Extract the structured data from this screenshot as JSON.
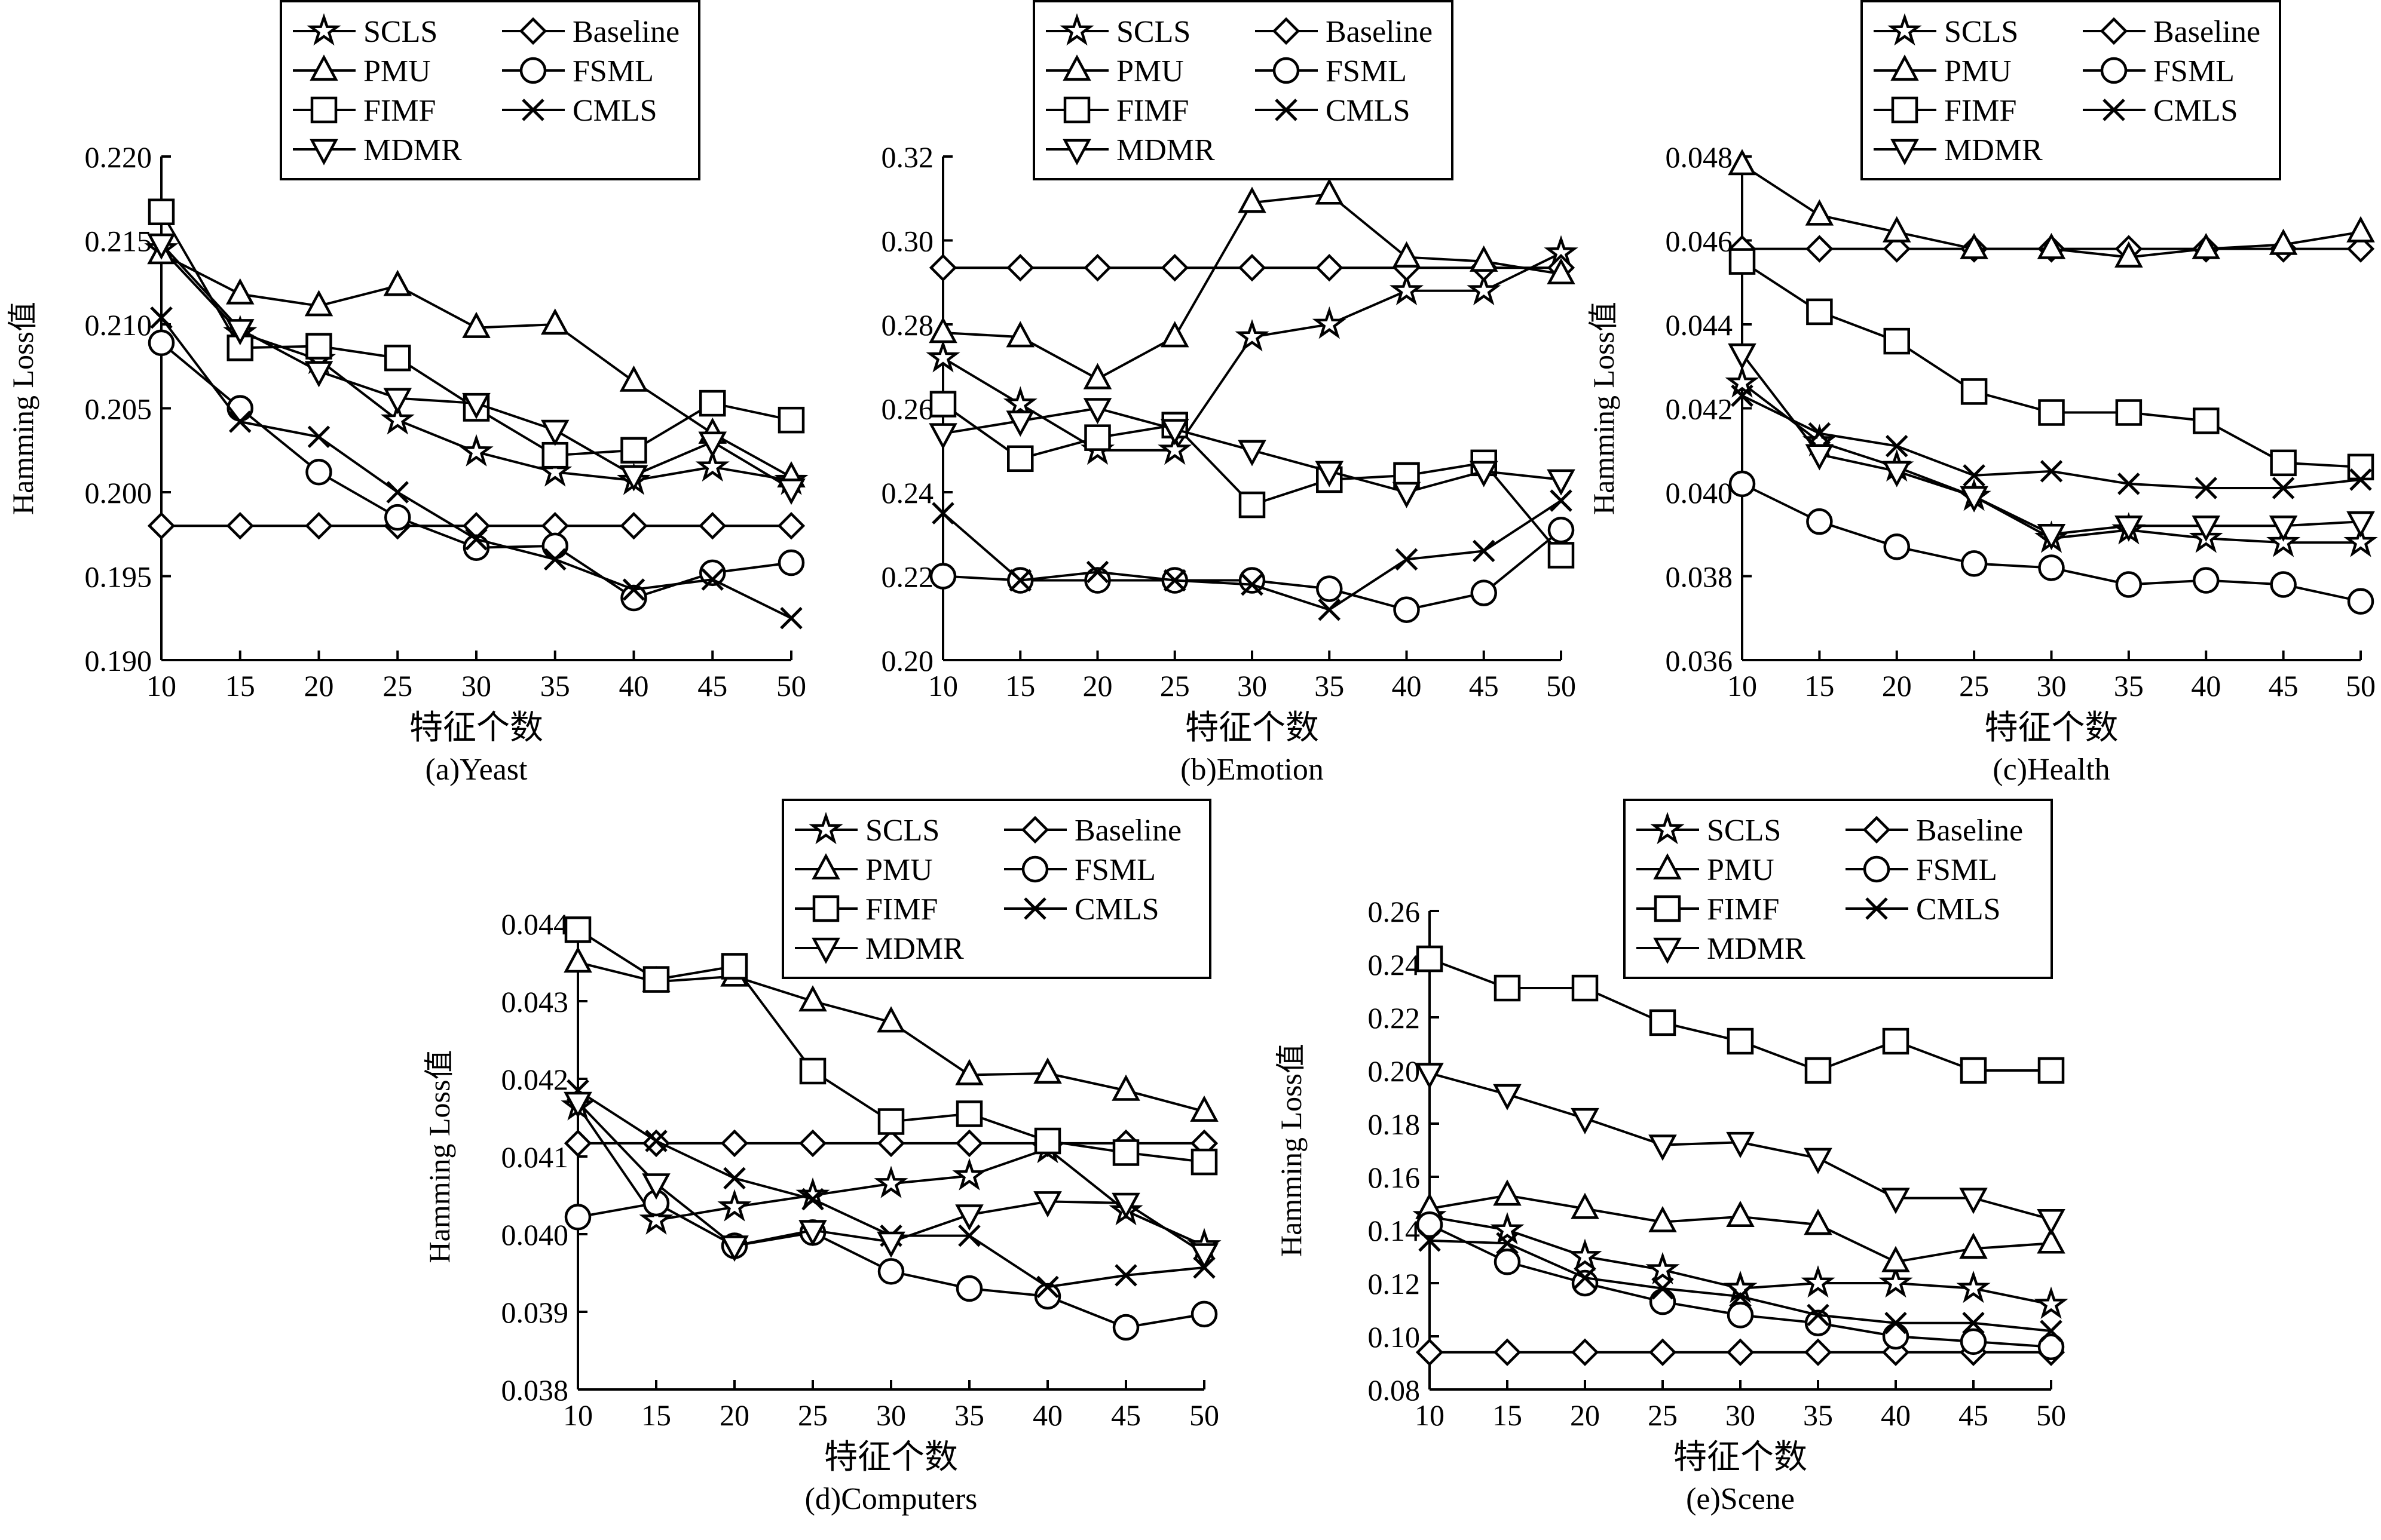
{
  "chart_data": [
    {
      "type": "line",
      "caption": "(a)Yeast",
      "xlabel": "特征个数",
      "ylabel": "Hamming Loss值",
      "x": [
        10,
        15,
        20,
        25,
        30,
        35,
        40,
        45,
        50
      ],
      "xlim": [
        10,
        50
      ],
      "ylim": [
        0.19,
        0.22
      ],
      "yticks": [
        "0.190",
        "0.195",
        "0.200",
        "0.205",
        "0.210",
        "0.215",
        "0.220"
      ],
      "legend_position": "top",
      "grid": false,
      "series": [
        {
          "name": "SCLS",
          "marker": "star",
          "values": [
            0.2145,
            0.2095,
            0.2079,
            0.2043,
            0.2024,
            0.2012,
            0.2007,
            0.2015,
            0.2007
          ]
        },
        {
          "name": "Baseline",
          "marker": "diamond",
          "values": [
            0.198,
            0.198,
            0.198,
            0.198,
            0.198,
            0.198,
            0.198,
            0.198,
            0.198
          ]
        },
        {
          "name": "PMU",
          "marker": "triangle-up",
          "values": [
            0.2142,
            0.2118,
            0.2111,
            0.2123,
            0.2098,
            0.21,
            0.2066,
            0.2035,
            0.2009
          ]
        },
        {
          "name": "FSML",
          "marker": "circle",
          "values": [
            0.2089,
            0.205,
            0.2012,
            0.1985,
            0.1967,
            0.1968,
            0.1937,
            0.1952,
            0.1958
          ]
        },
        {
          "name": "FIMF",
          "marker": "square",
          "values": [
            0.2167,
            0.2086,
            0.2087,
            0.208,
            0.205,
            0.2022,
            0.2025,
            0.2053,
            0.2043
          ]
        },
        {
          "name": "CMLS",
          "marker": "x",
          "values": [
            0.2104,
            0.2042,
            0.2033,
            0.2,
            0.1972,
            0.196,
            0.1942,
            0.1948,
            0.1925
          ]
        },
        {
          "name": "MDMR",
          "marker": "triangle-down",
          "values": [
            0.2148,
            0.2097,
            0.2072,
            0.2056,
            0.2053,
            0.2037,
            0.201,
            0.203,
            0.2002
          ]
        }
      ]
    },
    {
      "type": "line",
      "caption": "(b)Emotion",
      "xlabel": "特征个数",
      "ylabel": "",
      "x": [
        10,
        15,
        20,
        25,
        30,
        35,
        40,
        45,
        50
      ],
      "xlim": [
        10,
        50
      ],
      "ylim": [
        0.2,
        0.32
      ],
      "yticks": [
        "0.20",
        "0.22",
        "0.24",
        "0.26",
        "0.28",
        "0.30",
        "0.32"
      ],
      "legend_position": "top",
      "grid": false,
      "series": [
        {
          "name": "SCLS",
          "marker": "star",
          "values": [
            0.272,
            0.261,
            0.25,
            0.25,
            0.277,
            0.28,
            0.288,
            0.288,
            0.297
          ]
        },
        {
          "name": "Baseline",
          "marker": "diamond",
          "values": [
            0.2935,
            0.2935,
            0.2935,
            0.2935,
            0.2935,
            0.2935,
            0.2935,
            0.2935,
            0.2935
          ]
        },
        {
          "name": "PMU",
          "marker": "triangle-up",
          "values": [
            0.278,
            0.277,
            0.267,
            0.277,
            0.309,
            0.311,
            0.296,
            0.295,
            0.292
          ]
        },
        {
          "name": "FSML",
          "marker": "circle",
          "values": [
            0.22,
            0.219,
            0.219,
            0.219,
            0.219,
            0.217,
            0.212,
            0.216,
            0.231
          ]
        },
        {
          "name": "FIMF",
          "marker": "square",
          "values": [
            0.261,
            0.248,
            0.253,
            0.256,
            0.237,
            0.243,
            0.244,
            0.247,
            0.225
          ]
        },
        {
          "name": "CMLS",
          "marker": "x",
          "values": [
            0.235,
            0.219,
            0.221,
            0.219,
            0.218,
            0.212,
            0.224,
            0.226,
            0.238
          ]
        },
        {
          "name": "MDMR",
          "marker": "triangle-down",
          "values": [
            0.254,
            0.257,
            0.26,
            0.255,
            0.25,
            0.245,
            0.24,
            0.245,
            0.243
          ]
        }
      ]
    },
    {
      "type": "line",
      "caption": "(c)Health",
      "xlabel": "特征个数",
      "ylabel": "Hamming Loss值",
      "x": [
        10,
        15,
        20,
        25,
        30,
        35,
        40,
        45,
        50
      ],
      "xlim": [
        10,
        50
      ],
      "ylim": [
        0.036,
        0.048
      ],
      "yticks": [
        "0.036",
        "0.038",
        "0.040",
        "0.042",
        "0.044",
        "0.046",
        "0.048"
      ],
      "legend_position": "top",
      "grid": false,
      "series": [
        {
          "name": "SCLS",
          "marker": "star",
          "values": [
            0.0426,
            0.0412,
            0.0406,
            0.0399,
            0.0389,
            0.0391,
            0.0389,
            0.0388,
            0.0388
          ]
        },
        {
          "name": "Baseline",
          "marker": "diamond",
          "values": [
            0.0458,
            0.0458,
            0.0458,
            0.0458,
            0.0458,
            0.0458,
            0.0458,
            0.0458,
            0.0458
          ]
        },
        {
          "name": "PMU",
          "marker": "triangle-up",
          "values": [
            0.0478,
            0.0466,
            0.0462,
            0.0458,
            0.0458,
            0.0456,
            0.0458,
            0.0459,
            0.0462
          ]
        },
        {
          "name": "FSML",
          "marker": "circle",
          "values": [
            0.0402,
            0.0393,
            0.0387,
            0.0383,
            0.0382,
            0.0378,
            0.0379,
            0.0378,
            0.0374
          ]
        },
        {
          "name": "FIMF",
          "marker": "square",
          "values": [
            0.0455,
            0.0443,
            0.0436,
            0.0424,
            0.0419,
            0.0419,
            0.0417,
            0.0407,
            0.0406
          ]
        },
        {
          "name": "CMLS",
          "marker": "x",
          "values": [
            0.0423,
            0.0414,
            0.0411,
            0.0404,
            0.0405,
            0.0402,
            0.0401,
            0.0401,
            0.0403
          ]
        },
        {
          "name": "MDMR",
          "marker": "triangle-down",
          "values": [
            0.0433,
            0.0409,
            0.0405,
            0.0399,
            0.039,
            0.0392,
            0.0392,
            0.0392,
            0.0393
          ]
        }
      ]
    },
    {
      "type": "line",
      "caption": "(d)Computers",
      "xlabel": "特征个数",
      "ylabel": "Hamming Loss值",
      "x": [
        10,
        15,
        20,
        25,
        30,
        35,
        40,
        45,
        50
      ],
      "xlim": [
        10,
        50
      ],
      "ylim": [
        0.038,
        0.044
      ],
      "yticks": [
        "0.038",
        "0.039",
        "0.040",
        "0.041",
        "0.042",
        "0.043",
        "0.044"
      ],
      "legend_position": "top",
      "grid": false,
      "series": [
        {
          "name": "SCLS",
          "marker": "star",
          "values": [
            0.04165,
            0.04018,
            0.04035,
            0.0405,
            0.04065,
            0.04075,
            0.0411,
            0.0403,
            0.03985
          ]
        },
        {
          "name": "Baseline",
          "marker": "diamond",
          "values": [
            0.04117,
            0.04117,
            0.04117,
            0.04117,
            0.04117,
            0.04117,
            0.04117,
            0.04117,
            0.04117
          ]
        },
        {
          "name": "PMU",
          "marker": "triangle-up",
          "values": [
            0.0435,
            0.04325,
            0.04332,
            0.043,
            0.04273,
            0.04205,
            0.04207,
            0.04185,
            0.04158
          ]
        },
        {
          "name": "FSML",
          "marker": "circle",
          "values": [
            0.04022,
            0.0404,
            0.03985,
            0.04002,
            0.03952,
            0.0393,
            0.0392,
            0.0388,
            0.03897
          ]
        },
        {
          "name": "FIMF",
          "marker": "square",
          "values": [
            0.04392,
            0.04328,
            0.04345,
            0.0421,
            0.04145,
            0.04155,
            0.0412,
            0.04105,
            0.04093
          ]
        },
        {
          "name": "CMLS",
          "marker": "x",
          "values": [
            0.04185,
            0.0412,
            0.04072,
            0.04045,
            0.03998,
            0.03998,
            0.03932,
            0.03947,
            0.03957
          ]
        },
        {
          "name": "MDMR",
          "marker": "triangle-down",
          "values": [
            0.0417,
            0.04065,
            0.03985,
            0.04005,
            0.0399,
            0.04025,
            0.04042,
            0.0404,
            0.03975
          ]
        }
      ]
    },
    {
      "type": "line",
      "caption": "(e)Scene",
      "xlabel": "特征个数",
      "ylabel": "Hamming Loss值",
      "x": [
        10,
        15,
        20,
        25,
        30,
        35,
        40,
        45,
        50
      ],
      "xlim": [
        10,
        50
      ],
      "ylim": [
        0.08,
        0.26
      ],
      "yticks": [
        "0.08",
        "0.10",
        "0.12",
        "0.14",
        "0.16",
        "0.18",
        "0.20",
        "0.22",
        "0.24",
        "0.26"
      ],
      "legend_position": "top",
      "grid": false,
      "series": [
        {
          "name": "SCLS",
          "marker": "star",
          "values": [
            0.145,
            0.14,
            0.13,
            0.125,
            0.118,
            0.12,
            0.12,
            0.118,
            0.112
          ]
        },
        {
          "name": "Baseline",
          "marker": "diamond",
          "values": [
            0.094,
            0.094,
            0.094,
            0.094,
            0.094,
            0.094,
            0.094,
            0.094,
            0.094
          ]
        },
        {
          "name": "PMU",
          "marker": "triangle-up",
          "values": [
            0.148,
            0.153,
            0.148,
            0.143,
            0.145,
            0.142,
            0.128,
            0.133,
            0.135
          ]
        },
        {
          "name": "FSML",
          "marker": "circle",
          "values": [
            0.142,
            0.128,
            0.12,
            0.113,
            0.108,
            0.105,
            0.1,
            0.098,
            0.096
          ]
        },
        {
          "name": "FIMF",
          "marker": "square",
          "values": [
            0.242,
            0.231,
            0.231,
            0.218,
            0.211,
            0.2,
            0.211,
            0.2,
            0.2
          ]
        },
        {
          "name": "CMLS",
          "marker": "x",
          "values": [
            0.136,
            0.135,
            0.122,
            0.118,
            0.115,
            0.108,
            0.105,
            0.105,
            0.102
          ]
        },
        {
          "name": "MDMR",
          "marker": "triangle-down",
          "values": [
            0.199,
            0.191,
            0.182,
            0.172,
            0.173,
            0.167,
            0.152,
            0.152,
            0.144
          ]
        }
      ]
    }
  ]
}
